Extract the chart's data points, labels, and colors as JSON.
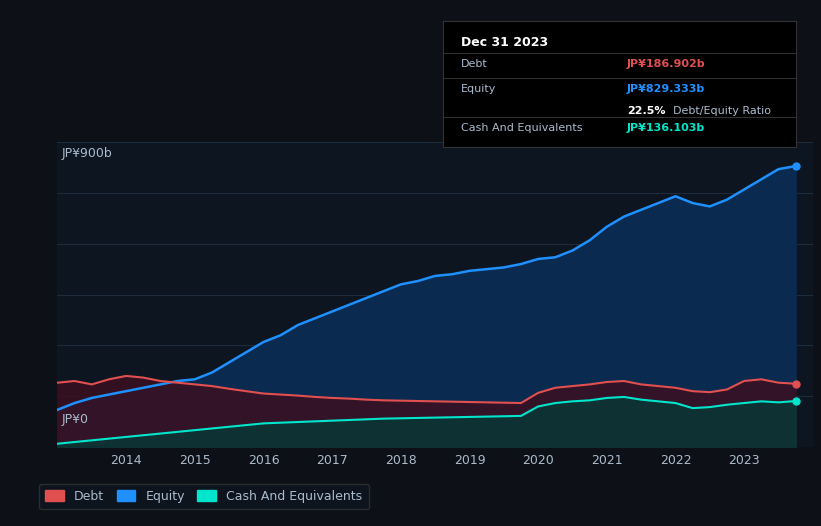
{
  "background_color": "#0d1117",
  "chart_bg": "#0d1520",
  "tooltip": {
    "date": "Dec 31 2023",
    "debt_label": "Debt",
    "debt_value": "JP¥186.902b",
    "equity_label": "Equity",
    "equity_value": "JP¥829.333b",
    "ratio_value": "22.5%",
    "ratio_label": "Debt/Equity Ratio",
    "cash_label": "Cash And Equivalents",
    "cash_value": "JP¥136.103b"
  },
  "ylabel_top": "JP¥900b",
  "ylabel_bottom": "JP¥0",
  "years": [
    2013.0,
    2013.25,
    2013.5,
    2013.75,
    2014.0,
    2014.25,
    2014.5,
    2014.75,
    2015.0,
    2015.25,
    2015.5,
    2015.75,
    2016.0,
    2016.25,
    2016.5,
    2016.75,
    2017.0,
    2017.25,
    2017.5,
    2017.75,
    2018.0,
    2018.25,
    2018.5,
    2018.75,
    2019.0,
    2019.25,
    2019.5,
    2019.75,
    2020.0,
    2020.25,
    2020.5,
    2020.75,
    2021.0,
    2021.25,
    2021.5,
    2021.75,
    2022.0,
    2022.25,
    2022.5,
    2022.75,
    2023.0,
    2023.25,
    2023.5,
    2023.75
  ],
  "equity": [
    110,
    130,
    145,
    155,
    165,
    175,
    185,
    195,
    200,
    220,
    250,
    280,
    310,
    330,
    360,
    380,
    400,
    420,
    440,
    460,
    480,
    490,
    505,
    510,
    520,
    525,
    530,
    540,
    555,
    560,
    580,
    610,
    650,
    680,
    700,
    720,
    740,
    720,
    710,
    730,
    760,
    790,
    820,
    829
  ],
  "debt": [
    190,
    195,
    185,
    200,
    210,
    205,
    195,
    190,
    185,
    180,
    172,
    165,
    158,
    155,
    152,
    148,
    145,
    143,
    140,
    138,
    137,
    136,
    135,
    134,
    133,
    132,
    131,
    130,
    160,
    175,
    180,
    185,
    192,
    195,
    185,
    180,
    175,
    165,
    162,
    170,
    195,
    200,
    190,
    187
  ],
  "cash": [
    10,
    15,
    20,
    25,
    30,
    35,
    40,
    45,
    50,
    55,
    60,
    65,
    70,
    72,
    74,
    76,
    78,
    80,
    82,
    84,
    85,
    86,
    87,
    88,
    89,
    90,
    91,
    92,
    120,
    130,
    135,
    138,
    145,
    148,
    140,
    135,
    130,
    115,
    118,
    125,
    130,
    135,
    132,
    136
  ],
  "equity_color": "#1e90ff",
  "equity_fill": "#0a2a50",
  "debt_color": "#e05050",
  "debt_fill": "#3a1020",
  "cash_color": "#00e5cc",
  "cash_fill": "#0a3535",
  "grid_color": "#1e2d3d",
  "text_color": "#aabbcc",
  "xlabel_years": [
    2014,
    2015,
    2016,
    2017,
    2018,
    2019,
    2020,
    2021,
    2022,
    2023
  ],
  "xlim_start": 2013.0,
  "xlim_end": 2024.0,
  "ylim_min": 0,
  "ylim_max": 900,
  "legend_labels": [
    "Debt",
    "Equity",
    "Cash And Equivalents"
  ]
}
